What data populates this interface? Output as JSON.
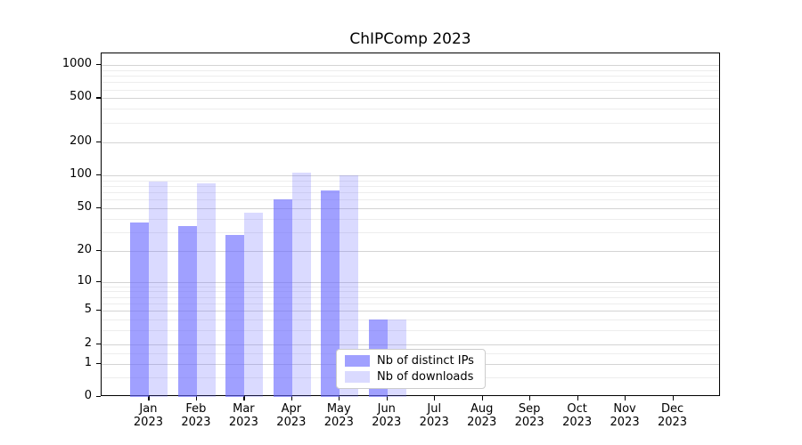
{
  "title": "ChIPComp 2023",
  "colors": {
    "bar_ips": "rgba(102,102,255,0.62)",
    "bar_downloads": "rgba(102,102,255,0.24)",
    "grid_major": "#d4d4d4",
    "grid_minor": "#ededed",
    "axis": "#000000",
    "legend_border": "#cccccc"
  },
  "chart_data": {
    "type": "bar",
    "title": "ChIPComp 2023",
    "categories": [
      {
        "month": "Jan",
        "year": "2023"
      },
      {
        "month": "Feb",
        "year": "2023"
      },
      {
        "month": "Mar",
        "year": "2023"
      },
      {
        "month": "Apr",
        "year": "2023"
      },
      {
        "month": "May",
        "year": "2023"
      },
      {
        "month": "Jun",
        "year": "2023"
      },
      {
        "month": "Jul",
        "year": "2023"
      },
      {
        "month": "Aug",
        "year": "2023"
      },
      {
        "month": "Sep",
        "year": "2023"
      },
      {
        "month": "Oct",
        "year": "2023"
      },
      {
        "month": "Nov",
        "year": "2023"
      },
      {
        "month": "Dec",
        "year": "2023"
      }
    ],
    "series": [
      {
        "name": "Nb of distinct IPs",
        "values": [
          37,
          34,
          28,
          60,
          73,
          4,
          0,
          0,
          0,
          0,
          0,
          0
        ]
      },
      {
        "name": "Nb of downloads",
        "values": [
          88,
          85,
          45,
          105,
          100,
          4,
          0,
          0,
          0,
          0,
          0,
          0
        ]
      }
    ],
    "xlabel": "",
    "ylabel": "",
    "yscale": "log1p",
    "ylim": [
      0,
      1275
    ],
    "yticks": [
      0,
      1,
      2,
      5,
      10,
      20,
      50,
      100,
      200,
      500,
      1000
    ],
    "yticks_minor": [
      0.5,
      1.5,
      3,
      4,
      6,
      7,
      8,
      9,
      30,
      40,
      60,
      70,
      80,
      90,
      300,
      400,
      600,
      700,
      800,
      900
    ],
    "grid": true,
    "legend_position": "lower center"
  }
}
